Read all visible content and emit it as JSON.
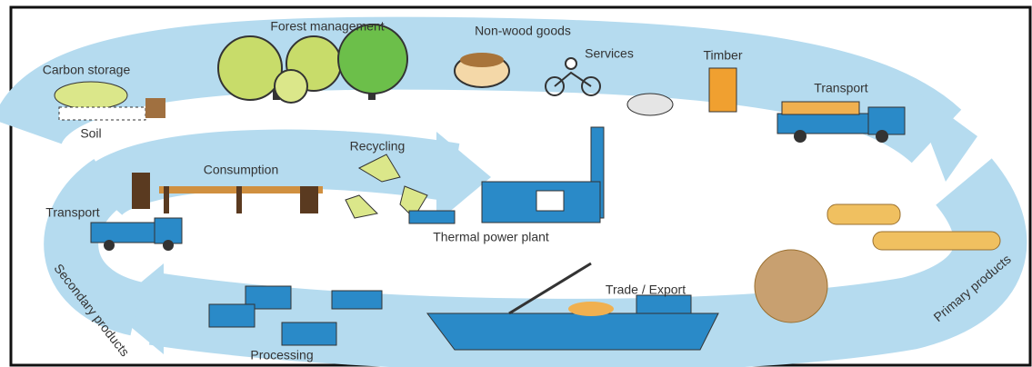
{
  "nodes": [
    {
      "label": "Forest management"
    },
    {
      "label": "Non-wood goods"
    },
    {
      "label": "Carbon storage"
    },
    {
      "label": "Soil"
    },
    {
      "label": "Services"
    },
    {
      "label": "Timber"
    },
    {
      "label": "Transport"
    },
    {
      "label": "Recycling"
    },
    {
      "label": "Consumption"
    },
    {
      "label": "Transport"
    },
    {
      "label": "Thermal power plant"
    },
    {
      "label": "Trade / Export"
    },
    {
      "label": "Processing"
    },
    {
      "label": "Secondary products"
    },
    {
      "label": "Primary products"
    }
  ]
}
